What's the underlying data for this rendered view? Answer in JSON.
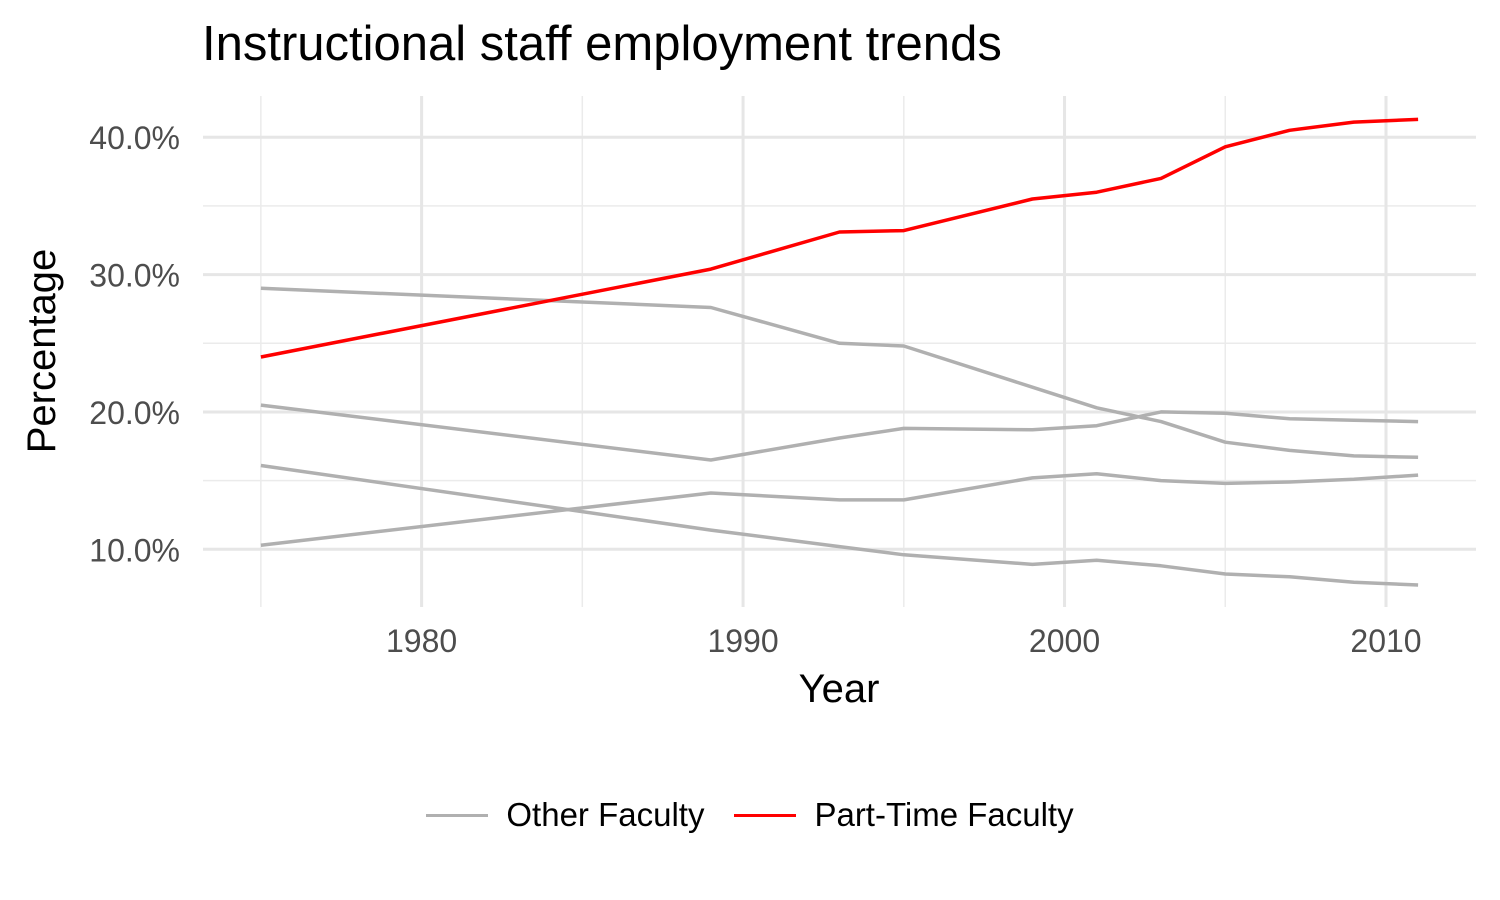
{
  "chart_data": {
    "type": "line",
    "title": "Instructional staff employment trends",
    "xlabel": "Year",
    "ylabel": "Percentage",
    "x": [
      1975,
      1989,
      1993,
      1995,
      1999,
      2001,
      2003,
      2005,
      2007,
      2009,
      2011
    ],
    "xlim": [
      1973.2,
      2012.8
    ],
    "ylim": [
      5.8,
      43.0
    ],
    "x_ticks": [
      1980,
      1990,
      2000,
      2010
    ],
    "x_tick_labels": [
      "1980",
      "1990",
      "2000",
      "2010"
    ],
    "y_ticks": [
      10,
      20,
      30,
      40
    ],
    "y_tick_labels": [
      "10.0%",
      "20.0%",
      "30.0%",
      "40.0%"
    ],
    "grid": true,
    "legend_position": "bottom",
    "legend": [
      {
        "label": "Other Faculty",
        "color": "#b0b0b0"
      },
      {
        "label": "Part-Time Faculty",
        "color": "#ff0000"
      }
    ],
    "series": [
      {
        "group": "Other Faculty",
        "color": "#b0b0b0",
        "values": [
          29.0,
          27.6,
          25.0,
          24.8,
          21.8,
          20.3,
          19.3,
          17.8,
          17.2,
          16.8,
          16.7
        ]
      },
      {
        "group": "Other Faculty",
        "color": "#b0b0b0",
        "values": [
          20.5,
          16.5,
          18.1,
          18.8,
          18.7,
          19.0,
          20.0,
          19.9,
          19.5,
          19.4,
          19.3
        ]
      },
      {
        "group": "Other Faculty",
        "color": "#b0b0b0",
        "values": [
          16.1,
          11.4,
          10.2,
          9.6,
          8.9,
          9.2,
          8.8,
          8.2,
          8.0,
          7.6,
          7.4
        ]
      },
      {
        "group": "Other Faculty",
        "color": "#b0b0b0",
        "values": [
          10.3,
          14.1,
          13.6,
          13.6,
          15.2,
          15.5,
          15.0,
          14.8,
          14.9,
          15.1,
          15.4
        ]
      },
      {
        "group": "Part-Time Faculty",
        "color": "#ff0000",
        "values": [
          24.0,
          30.4,
          33.1,
          33.2,
          35.5,
          36.0,
          37.0,
          39.3,
          40.5,
          41.1,
          41.3
        ]
      }
    ]
  }
}
